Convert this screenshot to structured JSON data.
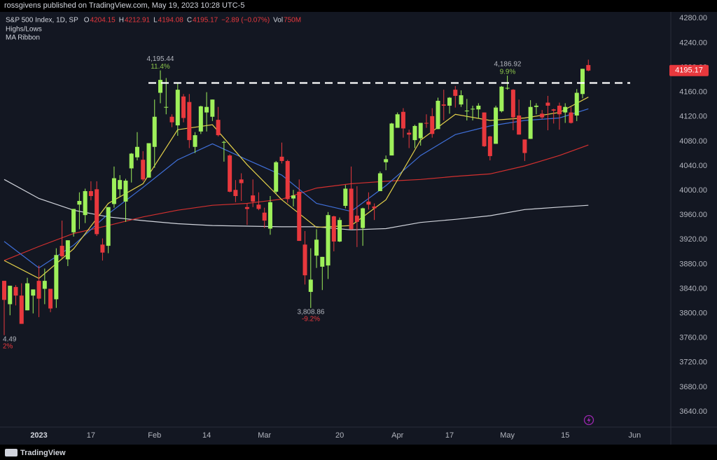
{
  "header": "rossgivens published on TradingView.com, May 19, 2023 10:28 UTC-5",
  "footer": "TradingView",
  "chart_data": {
    "type": "candlestick",
    "symbol": "S&P 500 Index, 1D, SP",
    "ohlc_legend": [
      {
        "label": "O",
        "value": 4204.15
      },
      {
        "label": "H",
        "value": 4212.91
      },
      {
        "label": "L",
        "value": 4194.08
      },
      {
        "label": "C",
        "value": 4195.17
      }
    ],
    "change": "−2.89 (−0.07%)",
    "volume": {
      "label": "Vol",
      "value": "750M"
    },
    "indicators": [
      "Highs/Lows",
      "MA Ribbon"
    ],
    "categories": [
      null,
      null,
      null,
      null,
      null,
      null,
      "2023",
      null,
      null,
      null,
      null,
      null,
      null,
      null,
      null,
      "17",
      null,
      null,
      null,
      null,
      null,
      null,
      null,
      null,
      null,
      null,
      "Feb",
      null,
      null,
      null,
      null,
      null,
      null,
      null,
      null,
      "14",
      null,
      null,
      null,
      null,
      null,
      null,
      null,
      null,
      null,
      "Mar",
      null,
      null,
      null,
      null,
      null,
      null,
      null,
      null,
      null,
      null,
      null,
      null,
      "20",
      null,
      null,
      null,
      null,
      null,
      null,
      null,
      null,
      null,
      "Apr",
      null,
      null,
      null,
      null,
      null,
      null,
      null,
      null,
      "17",
      null,
      null,
      null,
      null,
      null,
      null,
      null,
      null,
      null,
      "May",
      null,
      null,
      null,
      null,
      null,
      null,
      null,
      null,
      null,
      "15",
      null,
      null,
      null,
      null,
      null,
      null,
      null,
      null,
      null,
      null,
      null,
      "Jun"
    ],
    "open": [
      3853,
      3815,
      3843,
      3829,
      3805,
      3829,
      3853,
      3840,
      3840,
      3823,
      3910,
      3888,
      3932,
      3977,
      3960,
      3999,
      4002,
      3912,
      3910,
      3978,
      4002,
      3982,
      4036,
      4054,
      4050,
      4021,
      4071,
      4159,
      4136,
      4120,
      4106,
      4153,
      4144,
      4071,
      4096,
      4127,
      4120,
      4115,
      4078,
      4057,
      4001,
      4018,
      3973,
      3992,
      3977,
      3964,
      3938,
      3998,
      4055,
      4048,
      3987,
      3998,
      3912,
      3835,
      3894,
      3876,
      3878,
      3958,
      3917,
      3975,
      4003,
      3959,
      3939,
      3982,
      3974,
      3999,
      4046,
      4057,
      4102,
      4128,
      4094,
      4082,
      4085,
      4110,
      4121,
      4100,
      4140,
      4138,
      4164,
      4140,
      4130,
      4132,
      4132,
      4127,
      4088,
      4076,
      4129,
      4166,
      4164,
      4122,
      4083,
      4084,
      4136,
      4125,
      4143,
      4132,
      4138,
      4127,
      4127,
      4122,
      4157,
      4204.15,
      null,
      null,
      null,
      null,
      null,
      null,
      null,
      null
    ],
    "high": [
      3853,
      3845,
      3846,
      3849,
      3858,
      3839,
      3878,
      3873,
      3840,
      3906,
      3951,
      3919,
      3970,
      3997,
      4003,
      4015,
      4015,
      3922,
      3973,
      4039,
      4025,
      4019,
      4061,
      4095,
      4064,
      4077,
      4148,
      4195.44,
      4183,
      4124,
      4176,
      4157,
      4157,
      4095,
      4138,
      4160,
      4148,
      4136,
      4081,
      4059,
      4017,
      4028,
      3979,
      4018,
      3997,
      3972,
      3991,
      4048,
      4078,
      4050,
      4001,
      4018,
      3934,
      3906,
      3937,
      3892,
      3965,
      3959,
      3956,
      4009,
      4039,
      4007,
      3972,
      3997,
      3979,
      4031,
      4057,
      4110,
      4127,
      4134,
      4099,
      4107,
      4110,
      4124,
      4134,
      4151,
      4164,
      4152,
      4170,
      4163,
      4149,
      4138,
      4142,
      4127,
      4089,
      4138,
      4170,
      4186.92,
      4165,
      4148,
      4083,
      4147,
      4142,
      4131,
      4154,
      4133,
      4143,
      4142,
      4136,
      4165,
      4198,
      4212.91,
      null,
      null,
      null,
      null,
      null,
      null,
      null,
      null
    ],
    "low": [
      3764.49,
      3797,
      3813,
      3783,
      3805,
      3800,
      3794,
      3815,
      3802,
      3809,
      3890,
      3877,
      3925,
      3937,
      3947,
      3984,
      3926,
      3886,
      3898,
      3972,
      3990,
      3949,
      4013,
      4049,
      4015,
      4021,
      4037,
      4142,
      4124,
      4103,
      4089,
      4111,
      4069,
      4061,
      4092,
      4096,
      4113,
      4088,
      4047,
      3997,
      3981,
      3983,
      3944,
      3973,
      3968,
      3939,
      3928,
      3995,
      4044,
      3980,
      3974,
      3918,
      3847,
      3808.86,
      3874,
      3838,
      3856,
      3901,
      3916,
      3971,
      3936,
      3908,
      3910,
      3969,
      3952,
      3999,
      4033,
      4057,
      4102,
      4086,
      4069,
      4069,
      4073,
      4102,
      4086,
      4100,
      4114,
      4125,
      4135,
      4136,
      4114,
      4114,
      4117,
      4071,
      4049,
      4076,
      4127,
      4164,
      4098,
      4091,
      4048,
      4084,
      4124,
      4116,
      4098,
      4109,
      4099,
      4110,
      4109,
      4113,
      4150,
      4194.08,
      null,
      null,
      null,
      null,
      null,
      null,
      null,
      null
    ],
    "close": [
      3822,
      3845,
      3829,
      3783,
      3849,
      3839,
      3824,
      3853,
      3808,
      3895,
      3893,
      3919,
      3970,
      3983,
      3999,
      3991,
      3929,
      3899,
      3973,
      4020,
      4017,
      4016,
      4060,
      4071,
      4018,
      4077,
      4120,
      4180,
      4136,
      4111,
      4164,
      4118,
      4082,
      4090,
      4137,
      4136,
      4148,
      4090,
      4079,
      3998,
      3991,
      4012,
      3970,
      3982,
      3970,
      3951,
      3981,
      4046,
      4048,
      3986,
      3992,
      3918,
      3862,
      3855,
      3920,
      3892,
      3960,
      3917,
      3952,
      4003,
      3937,
      3949,
      3971,
      3977,
      3971,
      4028,
      4051,
      4109,
      4124,
      4101,
      4091,
      4105,
      4110,
      4109,
      4092,
      4146,
      4138,
      4151,
      4154,
      4155,
      4130,
      4133,
      4138,
      4072,
      4056,
      4135,
      4169,
      4167,
      4119,
      4091,
      4061,
      4136,
      4138,
      4119,
      4138,
      4130,
      4124,
      4136,
      4110,
      4159,
      4198,
      4195.17,
      null,
      null,
      null,
      null,
      null,
      null,
      null,
      null
    ],
    "up_color": "#9ef05a",
    "down_color": "#e8383d",
    "ylim": [
      3615,
      4310
    ],
    "yticks": [
      {
        "value": 3640,
        "label": "3640.00"
      },
      {
        "value": 3680,
        "label": "3680.00"
      },
      {
        "value": 3720,
        "label": "3720.00"
      },
      {
        "value": 3760,
        "label": "3760.00"
      },
      {
        "value": 3800,
        "label": "3800.00"
      },
      {
        "value": 3840,
        "label": "3840.00"
      },
      {
        "value": 3880,
        "label": "3880.00"
      },
      {
        "value": 3920,
        "label": "3920.00"
      },
      {
        "value": 3960,
        "label": "3960.00"
      },
      {
        "value": 4000,
        "label": "4000.00"
      },
      {
        "value": 4040,
        "label": "4040.00"
      },
      {
        "value": 4080,
        "label": "4080.00"
      },
      {
        "value": 4120,
        "label": "4120.00"
      },
      {
        "value": 4160,
        "label": "4160.00"
      },
      {
        "value": 4200,
        "label": "4200.00"
      },
      {
        "value": 4240,
        "label": "4240.00"
      },
      {
        "value": 4280,
        "label": "4280.00"
      }
    ],
    "grid": false,
    "lines": [
      {
        "color": "#d1d4dc",
        "x": [
          0,
          6,
          12,
          18,
          24,
          30,
          36,
          42,
          48,
          54,
          60,
          66,
          72,
          78,
          84,
          90,
          96,
          101
        ],
        "values": [
          4018,
          3987,
          3968,
          3957,
          3951,
          3946,
          3943,
          3942,
          3941,
          3941,
          3936,
          3938,
          3948,
          3953,
          3959,
          3969,
          3973,
          3976
        ]
      },
      {
        "color": "#d3302f",
        "x": [
          0,
          6,
          12,
          18,
          24,
          30,
          36,
          42,
          48,
          54,
          60,
          66,
          72,
          78,
          84,
          90,
          96,
          101
        ],
        "values": [
          3886,
          3909,
          3930,
          3943,
          3957,
          3968,
          3976,
          3979,
          3986,
          4004,
          4011,
          4015,
          4018,
          4023,
          4027,
          4040,
          4057,
          4074
        ]
      },
      {
        "color": "#3f6fd8",
        "x": [
          0,
          6,
          12,
          18,
          24,
          30,
          36,
          42,
          48,
          54,
          60,
          66,
          72,
          78,
          84,
          90,
          96,
          101
        ],
        "values": [
          3917,
          3874,
          3911,
          3962,
          4005,
          4050,
          4076,
          4050,
          4025,
          3979,
          3966,
          4008,
          4057,
          4091,
          4105,
          4114,
          4118,
          4133
        ]
      },
      {
        "color": "#e3d04a",
        "x": [
          0,
          6,
          12,
          18,
          24,
          30,
          36,
          42,
          48,
          54,
          60,
          66,
          72,
          78,
          84,
          90,
          96,
          101
        ],
        "values": [
          3886,
          3857,
          3905,
          3979,
          4011,
          4099,
          4107,
          4042,
          3985,
          3940,
          3943,
          3985,
          4082,
          4124,
          4114,
          4118,
          4127,
          4152
        ]
      }
    ],
    "hline": {
      "value": 4175
    },
    "annotations": [
      {
        "value": 4195.44,
        "label": "4,195.44",
        "change": "11.4%"
      },
      {
        "value": 4186.92,
        "label": "4,186.92",
        "change": "9.9%"
      },
      {
        "value": 3808.86,
        "label": "3,808.86",
        "change": "-9.2%"
      },
      {
        "label": "4.49",
        "change": "2%"
      }
    ],
    "last_price": {
      "value": 4195.17,
      "label": "4195.17"
    }
  }
}
